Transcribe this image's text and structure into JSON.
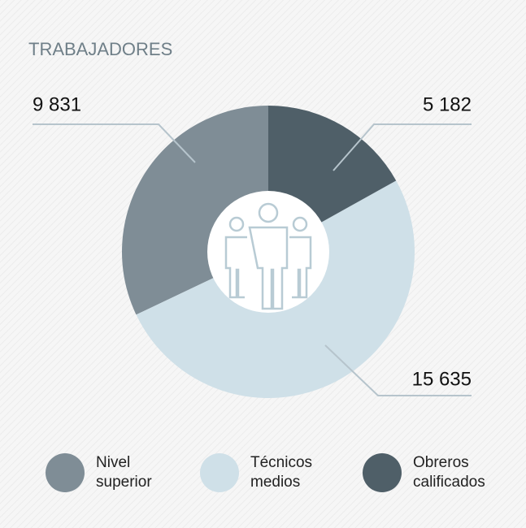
{
  "chart_data": {
    "type": "pie",
    "title": "TRABAJADORES",
    "categories": [
      "Nivel superior",
      "Técnicos medios",
      "Obreros calificados"
    ],
    "values": [
      9831,
      15635,
      5182
    ],
    "value_labels": [
      "9 831",
      "15 635",
      "5 182"
    ],
    "colors": [
      "#7f8d96",
      "#cfe0e8",
      "#4f5f68"
    ]
  }
}
